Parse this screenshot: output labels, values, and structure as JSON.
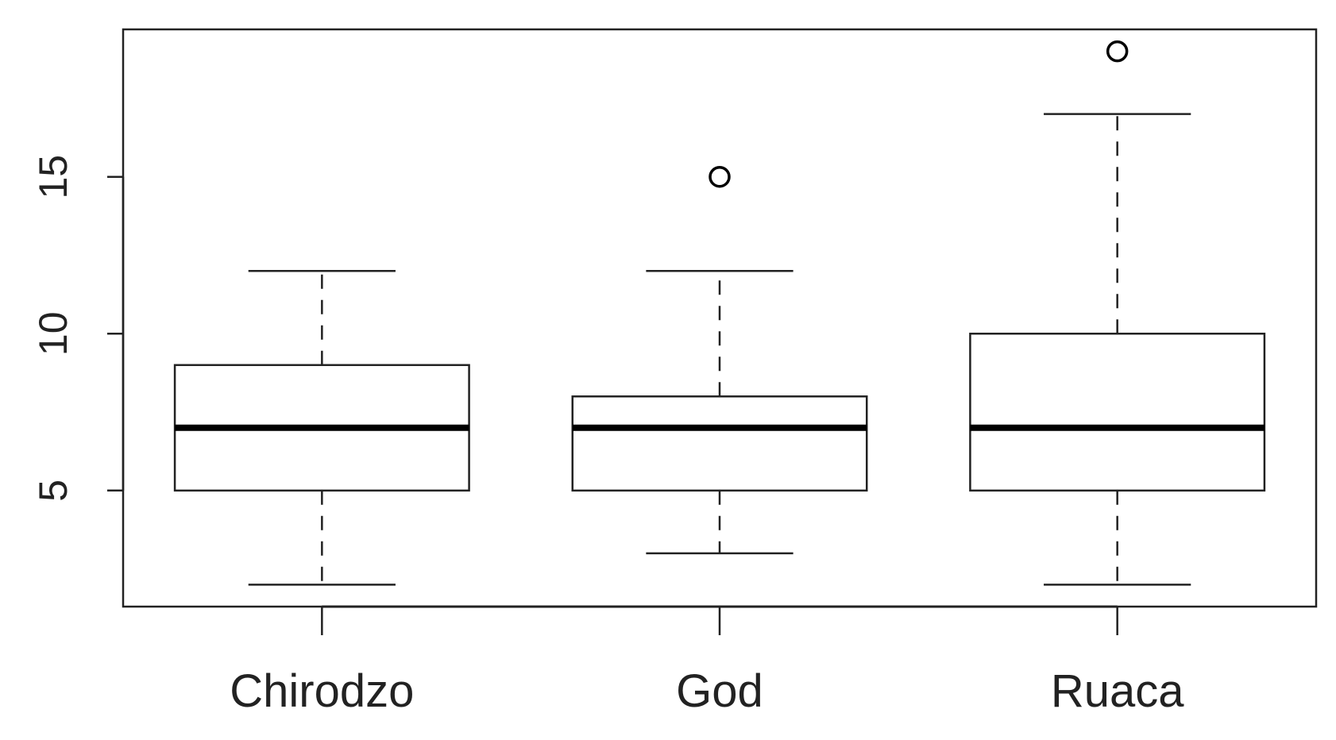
{
  "chart_data": {
    "type": "boxplot",
    "title": "",
    "xlabel": "",
    "ylabel": "",
    "ylim": [
      1.3,
      19.7
    ],
    "yticks": [
      5,
      10,
      15
    ],
    "ytick_labels": [
      "5",
      "10",
      "15"
    ],
    "categories": [
      "Chirodzo",
      "God",
      "Ruaca"
    ],
    "boxes": [
      {
        "category": "Chirodzo",
        "whisker_low": 2,
        "q1": 5,
        "median": 7,
        "q3": 9,
        "whisker_high": 12,
        "outliers": []
      },
      {
        "category": "God",
        "whisker_low": 3,
        "q1": 5,
        "median": 7,
        "q3": 8,
        "whisker_high": 12,
        "outliers": [
          15
        ]
      },
      {
        "category": "Ruaca",
        "whisker_low": 2,
        "q1": 5,
        "median": 7,
        "q3": 10,
        "whisker_high": 17,
        "outliers": [
          19
        ]
      }
    ],
    "grid": false,
    "legend": "none"
  },
  "colors": {
    "line": "#222222",
    "box_fill": "#ffffff",
    "background": "#ffffff"
  }
}
